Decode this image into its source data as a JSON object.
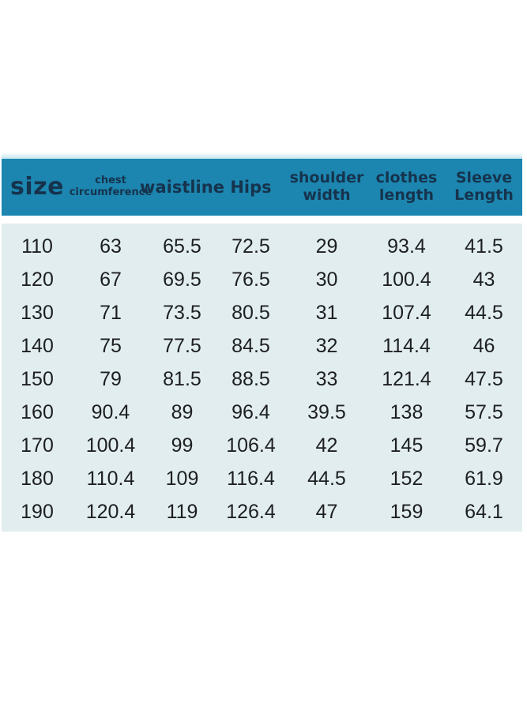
{
  "chart_data": {
    "type": "table",
    "title": "",
    "columns": [
      "size",
      "chest circumference",
      "waistline",
      "Hips",
      "shoulder width",
      "clothes length",
      "Sleeve Length"
    ],
    "rows": [
      [
        110,
        63,
        65.5,
        72.5,
        29,
        93.4,
        41.5
      ],
      [
        120,
        67,
        69.5,
        76.5,
        30,
        100.4,
        43
      ],
      [
        130,
        71,
        73.5,
        80.5,
        31,
        107.4,
        44.5
      ],
      [
        140,
        75,
        77.5,
        84.5,
        32,
        114.4,
        46
      ],
      [
        150,
        79,
        81.5,
        88.5,
        33,
        121.4,
        47.5
      ],
      [
        160,
        90.4,
        89,
        96.4,
        39.5,
        138,
        57.5
      ],
      [
        170,
        100.4,
        99,
        106.4,
        42,
        145,
        59.7
      ],
      [
        180,
        110.4,
        109,
        116.4,
        44.5,
        152,
        61.9
      ],
      [
        190,
        120.4,
        119,
        126.4,
        47,
        159,
        64.1
      ]
    ]
  },
  "header": {
    "size_label": "size",
    "chest_line1": "chest",
    "chest_line2": "circumference",
    "waistline_label": "waistline",
    "hips_label": "Hips",
    "shoulder_line1": "shoulder",
    "shoulder_line2": "width",
    "clothes_line1": "clothes",
    "clothes_line2": "length",
    "sleeve_line1": "Sleeve",
    "sleeve_line2": "Length"
  },
  "colors": {
    "header_bg": "#1c86b0",
    "header_text": "#16334d",
    "body_bg": "#e2edef",
    "body_text": "#1d1f21",
    "page_bg": "#ffffff"
  }
}
